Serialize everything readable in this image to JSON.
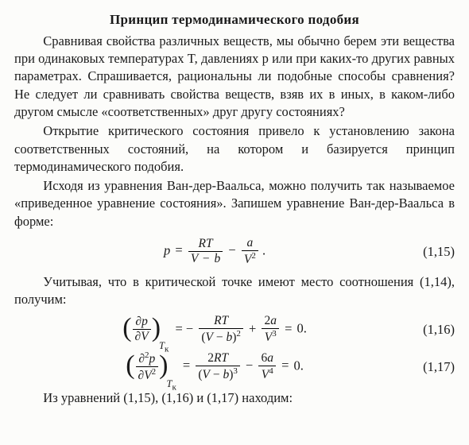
{
  "title": "Принцип термодинамического подобия",
  "p1": "Сравнивая свойства различных веществ, мы обычно берем эти вещества при одинаковых температурах T, давлениях p или при каких-то других равных параметрах. Спрашивается, рациональны ли подобные способы сравнения? Не следует ли сравнивать свойства веществ, взяв их в иных, в каком-либо другом смысле «соответственных» друг другу состояниях?",
  "p2": "Открытие критического состояния привело к установлению закона соответственных состояний, на котором и базируется принцип термодинамического подобия.",
  "p3": "Исходя из уравнения Ван-дер-Ваальса, можно получить так называемое «приведенное уравнение состояния». Запишем уравнение Ван-дер-Ваальса в форме:",
  "p4": "Учитывая, что в критической точке имеют место соотношения (1,14), получим:",
  "p5": "Из уравнений (1,15), (1,16) и (1,17) находим:",
  "eq": {
    "e15": {
      "num": "(1,15)"
    },
    "e16": {
      "num": "(1,16)"
    },
    "e17": {
      "num": "(1,17)"
    }
  }
}
